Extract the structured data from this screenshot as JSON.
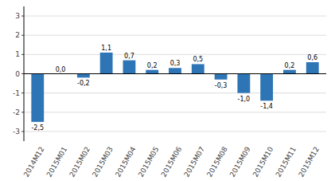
{
  "chart_data": {
    "type": "bar",
    "categories": [
      "2014M12",
      "2015M01",
      "2015M02",
      "2015M03",
      "2015M04",
      "2015M05",
      "2015M06",
      "2015M07",
      "2015M08",
      "2015M09",
      "2015M10",
      "2015M11",
      "2015M12"
    ],
    "values": [
      -2.5,
      0.0,
      -0.2,
      1.1,
      0.7,
      0.2,
      0.3,
      0.5,
      -0.3,
      -1.0,
      -1.4,
      0.2,
      0.6
    ],
    "value_labels": [
      "-2,5",
      "0,0",
      "-0,2",
      "1,1",
      "0,7",
      "0,2",
      "0,3",
      "0,5",
      "-0,3",
      "-1,0",
      "-1,4",
      "0,2",
      "0,6"
    ],
    "data_labels": true,
    "color": "#2E75B6",
    "ylim": [
      -3.5,
      3.5
    ],
    "yticks": [
      -3,
      -2,
      -1,
      0,
      1,
      2,
      3
    ],
    "grid": true
  }
}
